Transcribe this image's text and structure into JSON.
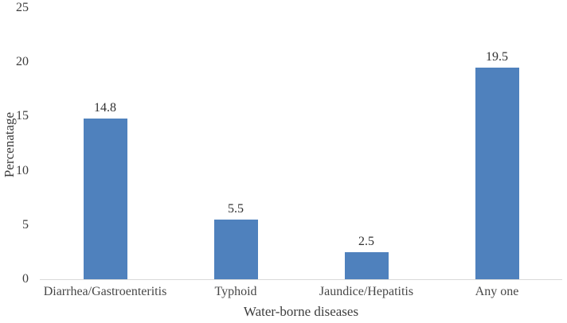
{
  "figure": {
    "background_color": "#ffffff"
  },
  "chart_data": {
    "type": "bar",
    "title": "",
    "categories": [
      "Diarrhea/Gastroenteritis",
      "Typhoid",
      "Jaundice/Hepatitis",
      "Any one"
    ],
    "values": [
      14.8,
      5.5,
      2.5,
      19.5
    ],
    "value_labels": [
      "14.8",
      "5.5",
      "2.5",
      "19.5"
    ],
    "xlabel": "Water-borne diseases",
    "ylabel": "Percenatage",
    "ylim": [
      0,
      25
    ],
    "yticks": [
      0,
      5,
      10,
      15,
      20,
      25
    ],
    "grid": false,
    "legend": "none",
    "bar_color": "#4f81bd",
    "axis_line_color": "#d9d9d9",
    "text_color": "#3d3d3d"
  }
}
